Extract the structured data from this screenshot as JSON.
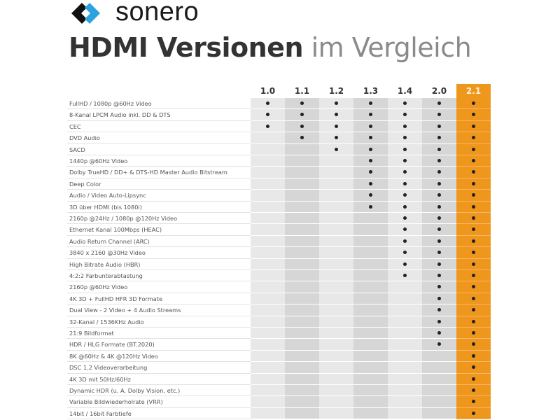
{
  "brand": "sonero",
  "title": {
    "bold": "HDMI Versionen",
    "light": "im Vergleich"
  },
  "versions": [
    "1.0",
    "1.1",
    "1.2",
    "1.3",
    "1.4",
    "2.0",
    "2.1"
  ],
  "highlight_version": "2.1",
  "colors": {
    "highlight": "#ef961c",
    "logo_dark": "#111111",
    "logo_blue": "#2aa3df"
  },
  "features": [
    {
      "label": "FullHD / 1080p @60Hz Video",
      "since": "1.0"
    },
    {
      "label": "8-Kanal LPCM Audio inkl. DD & DTS",
      "since": "1.0"
    },
    {
      "label": "CEC",
      "since": "1.0"
    },
    {
      "label": "DVD Audio",
      "since": "1.1"
    },
    {
      "label": "SACD",
      "since": "1.2"
    },
    {
      "label": "1440p @60Hz Video",
      "since": "1.3"
    },
    {
      "label": "Dolby TrueHD / DD+ & DTS-HD Master Audio Bitstream",
      "since": "1.3"
    },
    {
      "label": "Deep Color",
      "since": "1.3"
    },
    {
      "label": "Audio / Video Auto-Lipsync",
      "since": "1.3"
    },
    {
      "label": "3D über HDMI (bis 1080i)",
      "since": "1.3"
    },
    {
      "label": "2160p @24Hz / 1080p @120Hz Video",
      "since": "1.4"
    },
    {
      "label": "Ethernet Kanal 100Mbps (HEAC)",
      "since": "1.4"
    },
    {
      "label": "Audio Return Channel (ARC)",
      "since": "1.4"
    },
    {
      "label": "3840 x 2160 @30Hz Video",
      "since": "1.4"
    },
    {
      "label": "High Bitrate Audio (HBR)",
      "since": "1.4"
    },
    {
      "label": "4:2:2 Farbunterabtastung",
      "since": "1.4"
    },
    {
      "label": "2160p @60Hz Video",
      "since": "2.0"
    },
    {
      "label": "4K 3D + FullHD HFR 3D Formate",
      "since": "2.0"
    },
    {
      "label": "Dual View - 2 Video + 4 Audio Streams",
      "since": "2.0"
    },
    {
      "label": "32-Kanal / 1536KHz Audio",
      "since": "2.0"
    },
    {
      "label": "21:9 Bildformat",
      "since": "2.0"
    },
    {
      "label": "HDR / HLG Formate (BT.2020)",
      "since": "2.0"
    },
    {
      "label": "8K @60Hz & 4K @120Hz Video",
      "since": "2.1"
    },
    {
      "label": "DSC 1.2 Videoverarbeitung",
      "since": "2.1"
    },
    {
      "label": "4K 3D mit 50Hz/60Hz",
      "since": "2.1"
    },
    {
      "label": "Dynamic HDR (u. A. Dolby Vision, etc.)",
      "since": "2.1"
    },
    {
      "label": "Variable Bildwiederholrate (VRR)",
      "since": "2.1"
    },
    {
      "label": "14bit / 16bit Farbtiefe",
      "since": "2.1"
    }
  ]
}
